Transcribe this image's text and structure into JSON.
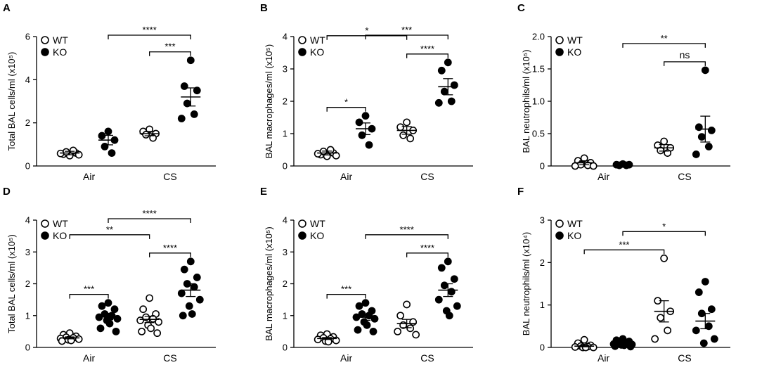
{
  "figure_labels": {
    "legend_wt": "WT",
    "legend_ko": "KO",
    "group_air": "Air",
    "group_cs": "CS"
  },
  "chart_data": [
    {
      "panel": "A",
      "type": "scatter",
      "ylabel": "Total BAL cells/ml (x10⁵)",
      "ylim": [
        0,
        6
      ],
      "yticks": [
        0,
        2,
        4,
        6
      ],
      "series": [
        {
          "group": "Air",
          "genotype": "WT",
          "mean": 0.6,
          "sem": 0.08,
          "points": [
            0.48,
            0.55,
            0.6,
            0.65,
            0.72,
            0.58,
            0.52
          ]
        },
        {
          "group": "Air",
          "genotype": "KO",
          "mean": 1.2,
          "sem": 0.22,
          "points": [
            1.6,
            1.4,
            1.2,
            0.9,
            0.6
          ]
        },
        {
          "group": "CS",
          "genotype": "WT",
          "mean": 1.5,
          "sem": 0.1,
          "points": [
            1.7,
            1.6,
            1.5,
            1.45,
            1.3
          ]
        },
        {
          "group": "CS",
          "genotype": "KO",
          "mean": 3.2,
          "sem": 0.42,
          "points": [
            4.9,
            3.7,
            3.5,
            2.9,
            2.4,
            2.2
          ]
        }
      ],
      "significance": [
        {
          "from": "Air-KO",
          "to": "CS-KO",
          "label": "****"
        },
        {
          "from": "CS-WT",
          "to": "CS-KO",
          "label": "***"
        }
      ]
    },
    {
      "panel": "B",
      "type": "scatter",
      "ylabel": "BAL macrophages/ml (x10⁵)",
      "ylim": [
        0,
        4
      ],
      "yticks": [
        0,
        1,
        2,
        3,
        4
      ],
      "series": [
        {
          "group": "Air",
          "genotype": "WT",
          "mean": 0.4,
          "sem": 0.06,
          "points": [
            0.3,
            0.35,
            0.4,
            0.45,
            0.5,
            0.38,
            0.32
          ]
        },
        {
          "group": "Air",
          "genotype": "KO",
          "mean": 1.15,
          "sem": 0.18,
          "points": [
            1.55,
            1.35,
            1.15,
            0.95,
            0.65
          ]
        },
        {
          "group": "CS",
          "genotype": "WT",
          "mean": 1.1,
          "sem": 0.12,
          "points": [
            1.35,
            1.2,
            1.1,
            0.95,
            0.85
          ]
        },
        {
          "group": "CS",
          "genotype": "KO",
          "mean": 2.45,
          "sem": 0.25,
          "points": [
            3.2,
            2.95,
            2.5,
            2.3,
            2.0,
            1.95
          ]
        }
      ],
      "significance": [
        {
          "from": "Air-WT",
          "to": "Air-KO",
          "label": "*"
        },
        {
          "from": "Air-WT",
          "to": "CS-WT",
          "label": "*"
        },
        {
          "from": "Air-KO",
          "to": "CS-KO",
          "label": "***"
        },
        {
          "from": "CS-WT",
          "to": "CS-KO",
          "label": "****"
        }
      ]
    },
    {
      "panel": "C",
      "type": "scatter",
      "ylabel": "BAL neutrophils/ml (x10⁵)",
      "ylim": [
        0,
        2.0
      ],
      "yticks": [
        0,
        0.5,
        1.0,
        1.5,
        2.0
      ],
      "series": [
        {
          "group": "Air",
          "genotype": "WT",
          "mean": 0.05,
          "sem": 0.03,
          "points": [
            0.12,
            0.08,
            0.05,
            0.02,
            0.01,
            0.0,
            0.0
          ]
        },
        {
          "group": "Air",
          "genotype": "KO",
          "mean": 0.02,
          "sem": 0.005,
          "points": [
            0.03,
            0.02,
            0.02,
            0.01,
            0.01
          ]
        },
        {
          "group": "CS",
          "genotype": "WT",
          "mean": 0.28,
          "sem": 0.05,
          "points": [
            0.38,
            0.32,
            0.28,
            0.24,
            0.2
          ]
        },
        {
          "group": "CS",
          "genotype": "KO",
          "mean": 0.57,
          "sem": 0.2,
          "points": [
            1.48,
            0.6,
            0.55,
            0.45,
            0.3,
            0.18
          ]
        }
      ],
      "significance": [
        {
          "from": "Air-KO",
          "to": "CS-KO",
          "label": "**"
        },
        {
          "from": "CS-WT",
          "to": "CS-KO",
          "label": "ns"
        }
      ]
    },
    {
      "panel": "D",
      "type": "scatter",
      "ylabel": "Total BAL cells/ml (x10⁵)",
      "ylim": [
        0,
        4
      ],
      "yticks": [
        0,
        1,
        2,
        3,
        4
      ],
      "series": [
        {
          "group": "Air",
          "genotype": "WT",
          "mean": 0.3,
          "sem": 0.03,
          "points": [
            0.45,
            0.4,
            0.35,
            0.32,
            0.3,
            0.28,
            0.26,
            0.24,
            0.22,
            0.2
          ]
        },
        {
          "group": "Air",
          "genotype": "KO",
          "mean": 0.97,
          "sem": 0.1,
          "points": [
            1.4,
            1.3,
            1.2,
            1.05,
            1.0,
            0.95,
            0.9,
            0.85,
            0.75,
            0.6,
            0.5
          ]
        },
        {
          "group": "CS",
          "genotype": "WT",
          "mean": 0.88,
          "sem": 0.1,
          "points": [
            1.55,
            1.2,
            1.05,
            0.95,
            0.9,
            0.85,
            0.8,
            0.7,
            0.6,
            0.5,
            0.45
          ]
        },
        {
          "group": "CS",
          "genotype": "KO",
          "mean": 1.8,
          "sem": 0.2,
          "points": [
            2.7,
            2.45,
            2.2,
            2.0,
            1.9,
            1.7,
            1.5,
            1.3,
            1.05,
            1.0
          ]
        }
      ],
      "significance": [
        {
          "from": "Air-WT",
          "to": "Air-KO",
          "label": "***"
        },
        {
          "from": "Air-WT",
          "to": "CS-WT",
          "label": "**"
        },
        {
          "from": "Air-KO",
          "to": "CS-KO",
          "label": "****"
        },
        {
          "from": "CS-WT",
          "to": "CS-KO",
          "label": "****"
        }
      ]
    },
    {
      "panel": "E",
      "type": "scatter",
      "ylabel": "BAL macrophages/ml (x10⁵)",
      "ylim": [
        0,
        4
      ],
      "yticks": [
        0,
        1,
        2,
        3,
        4
      ],
      "series": [
        {
          "group": "Air",
          "genotype": "WT",
          "mean": 0.28,
          "sem": 0.03,
          "points": [
            0.42,
            0.38,
            0.33,
            0.3,
            0.27,
            0.25,
            0.22,
            0.2,
            0.18
          ]
        },
        {
          "group": "Air",
          "genotype": "KO",
          "mean": 0.95,
          "sem": 0.1,
          "points": [
            1.4,
            1.3,
            1.15,
            1.05,
            1.0,
            0.95,
            0.9,
            0.8,
            0.7,
            0.55,
            0.5
          ]
        },
        {
          "group": "CS",
          "genotype": "WT",
          "mean": 0.75,
          "sem": 0.13,
          "points": [
            1.35,
            1.0,
            0.8,
            0.7,
            0.6,
            0.5,
            0.4
          ]
        },
        {
          "group": "CS",
          "genotype": "KO",
          "mean": 1.8,
          "sem": 0.2,
          "points": [
            2.7,
            2.5,
            2.15,
            1.95,
            1.75,
            1.5,
            1.3,
            1.15,
            1.0
          ]
        }
      ],
      "significance": [
        {
          "from": "Air-WT",
          "to": "Air-KO",
          "label": "***"
        },
        {
          "from": "Air-KO",
          "to": "CS-KO",
          "label": "****"
        },
        {
          "from": "CS-WT",
          "to": "CS-KO",
          "label": "****"
        }
      ]
    },
    {
      "panel": "F",
      "type": "scatter",
      "ylabel": "BAL neutrophils/ml (x10⁴)",
      "ylim": [
        0,
        3
      ],
      "yticks": [
        0,
        1,
        2,
        3
      ],
      "series": [
        {
          "group": "Air",
          "genotype": "WT",
          "mean": 0.03,
          "sem": 0.015,
          "points": [
            0.18,
            0.1,
            0.05,
            0.03,
            0.02,
            0.01,
            0.0,
            0.0,
            0.0
          ]
        },
        {
          "group": "Air",
          "genotype": "KO",
          "mean": 0.08,
          "sem": 0.02,
          "points": [
            0.2,
            0.17,
            0.14,
            0.12,
            0.1,
            0.08,
            0.07,
            0.06,
            0.05,
            0.03,
            0.02
          ]
        },
        {
          "group": "CS",
          "genotype": "WT",
          "mean": 0.85,
          "sem": 0.25,
          "points": [
            2.1,
            1.1,
            0.85,
            0.7,
            0.4,
            0.2
          ]
        },
        {
          "group": "CS",
          "genotype": "KO",
          "mean": 0.62,
          "sem": 0.18,
          "points": [
            1.55,
            1.3,
            0.9,
            0.8,
            0.5,
            0.4,
            0.2,
            0.1
          ]
        }
      ],
      "significance": [
        {
          "from": "Air-WT",
          "to": "CS-WT",
          "label": "***"
        },
        {
          "from": "Air-KO",
          "to": "CS-KO",
          "label": "*"
        }
      ]
    }
  ]
}
